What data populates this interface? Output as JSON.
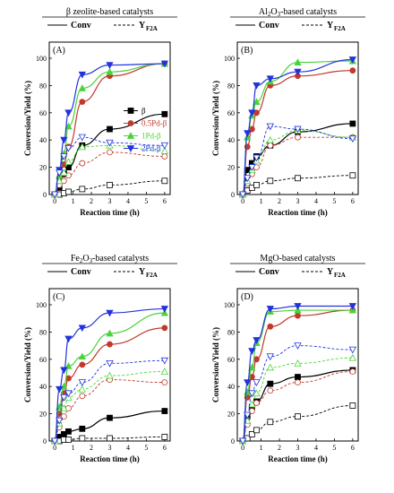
{
  "legend": {
    "conv_label": "Conv",
    "yield_label": "Y",
    "yield_sub": "F2A"
  },
  "chart_data": [
    {
      "type": "scatter",
      "title": "β zeolite-based catalysts",
      "panel_label": "(A)",
      "xlabel": "Reaction time (h)",
      "ylabel": "Conversion/Yield (%)",
      "xlim": [
        -0.3,
        6.3
      ],
      "ylim": [
        0,
        100
      ],
      "xticks": [
        0,
        1,
        2,
        3,
        4,
        5,
        6
      ],
      "yticks": [
        0,
        20,
        40,
        60,
        80,
        100
      ],
      "x": [
        0,
        0.25,
        0.5,
        0.75,
        1.5,
        3,
        6
      ],
      "series_legend": "right",
      "series": [
        {
          "name": "β",
          "color": "#000000",
          "marker": "square",
          "conv": [
            0,
            5,
            15,
            20,
            36,
            48,
            59
          ],
          "yield": [
            0,
            0,
            1,
            2,
            4,
            7,
            10
          ]
        },
        {
          "name": "0.5Pd-β",
          "color": "#c0392b",
          "marker": "circle",
          "conv": [
            0,
            12,
            22,
            35,
            68,
            87,
            96
          ],
          "yield": [
            0,
            7,
            10,
            14,
            23,
            31,
            28
          ]
        },
        {
          "name": "1Pd-β",
          "color": "#4bd33b",
          "marker": "triangle",
          "conv": [
            0,
            14,
            30,
            50,
            78,
            90,
            96
          ],
          "yield": [
            0,
            10,
            16,
            24,
            35,
            36,
            32
          ]
        },
        {
          "name": "2Pd-β",
          "color": "#2233dd",
          "marker": "triangle-down",
          "conv": [
            0,
            18,
            40,
            60,
            88,
            95,
            96
          ],
          "yield": [
            0,
            16,
            28,
            34,
            42,
            38,
            36
          ]
        }
      ]
    },
    {
      "type": "scatter",
      "title": "Al2O3-based catalysts",
      "title_sub": "2",
      "title_sub2": "3",
      "panel_label": "(B)",
      "xlabel": "Reaction time (h)",
      "ylabel": "Conversion/Yield (%)",
      "xlim": [
        -0.3,
        6.3
      ],
      "ylim": [
        0,
        100
      ],
      "xticks": [
        0,
        1,
        2,
        3,
        4,
        5,
        6
      ],
      "yticks": [
        0,
        20,
        40,
        60,
        80,
        100
      ],
      "x": [
        0,
        0.25,
        0.5,
        0.75,
        1.5,
        3,
        6
      ],
      "series": [
        {
          "name": "",
          "color": "#000000",
          "marker": "square",
          "conv": [
            0,
            18,
            23,
            28,
            36,
            46,
            52
          ],
          "yield": [
            0,
            3,
            5,
            7,
            10,
            12,
            14
          ]
        },
        {
          "name": "",
          "color": "#c0392b",
          "marker": "circle",
          "conv": [
            0,
            35,
            48,
            60,
            80,
            87,
            91
          ],
          "yield": [
            0,
            8,
            15,
            20,
            36,
            42,
            42
          ]
        },
        {
          "name": "",
          "color": "#4bd33b",
          "marker": "triangle",
          "conv": [
            0,
            42,
            58,
            68,
            83,
            97,
            98
          ],
          "yield": [
            0,
            10,
            18,
            25,
            40,
            47,
            42
          ]
        },
        {
          "name": "",
          "color": "#2233dd",
          "marker": "triangle-down",
          "conv": [
            0,
            45,
            60,
            80,
            85,
            90,
            99
          ],
          "yield": [
            0,
            12,
            20,
            27,
            50,
            48,
            41
          ]
        }
      ]
    },
    {
      "type": "scatter",
      "title": "Fe2O3-based catalysts",
      "title_sub": "2",
      "title_sub2": "3",
      "panel_label": "(C)",
      "xlabel": "Reaction time (h)",
      "ylabel": "Conversion/Yield (%)",
      "xlim": [
        -0.3,
        6.3
      ],
      "ylim": [
        0,
        100
      ],
      "xticks": [
        0,
        1,
        2,
        3,
        4,
        5,
        6
      ],
      "yticks": [
        0,
        20,
        40,
        60,
        80,
        100
      ],
      "x": [
        0,
        0.25,
        0.5,
        0.75,
        1.5,
        3,
        6
      ],
      "series": [
        {
          "name": "",
          "color": "#000000",
          "marker": "square",
          "conv": [
            0,
            3,
            5,
            7,
            9,
            17,
            22
          ],
          "yield": [
            0,
            0,
            1,
            1,
            2,
            2,
            3
          ]
        },
        {
          "name": "",
          "color": "#c0392b",
          "marker": "circle",
          "conv": [
            0,
            20,
            35,
            46,
            56,
            71,
            83
          ],
          "yield": [
            0,
            10,
            18,
            24,
            33,
            45,
            43
          ]
        },
        {
          "name": "",
          "color": "#4bd33b",
          "marker": "triangle",
          "conv": [
            0,
            25,
            40,
            55,
            62,
            79,
            94
          ],
          "yield": [
            0,
            13,
            24,
            32,
            38,
            48,
            51
          ]
        },
        {
          "name": "",
          "color": "#2233dd",
          "marker": "triangle-down",
          "conv": [
            0,
            38,
            52,
            75,
            83,
            94,
            97
          ],
          "yield": [
            0,
            15,
            32,
            35,
            43,
            57,
            59
          ]
        }
      ]
    },
    {
      "type": "scatter",
      "title": "MgO-based catalysts",
      "panel_label": "(D)",
      "xlabel": "Reaction time (h)",
      "ylabel": "Conversion/Yield (%)",
      "xlim": [
        -0.3,
        6.3
      ],
      "ylim": [
        0,
        100
      ],
      "xticks": [
        0,
        1,
        2,
        3,
        4,
        5,
        6
      ],
      "yticks": [
        0,
        20,
        40,
        60,
        80,
        100
      ],
      "x": [
        0,
        0.25,
        0.5,
        0.75,
        1.5,
        3,
        6
      ],
      "series": [
        {
          "name": "",
          "color": "#000000",
          "marker": "square",
          "conv": [
            0,
            18,
            25,
            29,
            42,
            47,
            52
          ],
          "yield": [
            0,
            2,
            5,
            8,
            14,
            18,
            26
          ]
        },
        {
          "name": "",
          "color": "#c0392b",
          "marker": "circle",
          "conv": [
            0,
            32,
            47,
            60,
            84,
            92,
            96
          ],
          "yield": [
            0,
            12,
            22,
            28,
            37,
            43,
            51
          ]
        },
        {
          "name": "",
          "color": "#4bd33b",
          "marker": "triangle",
          "conv": [
            0,
            36,
            54,
            72,
            95,
            96,
            96
          ],
          "yield": [
            0,
            15,
            27,
            35,
            54,
            57,
            61
          ]
        },
        {
          "name": "",
          "color": "#2233dd",
          "marker": "triangle-down",
          "conv": [
            0,
            43,
            66,
            74,
            97,
            99,
            99
          ],
          "yield": [
            0,
            19,
            35,
            43,
            62,
            70,
            67
          ]
        }
      ]
    }
  ]
}
